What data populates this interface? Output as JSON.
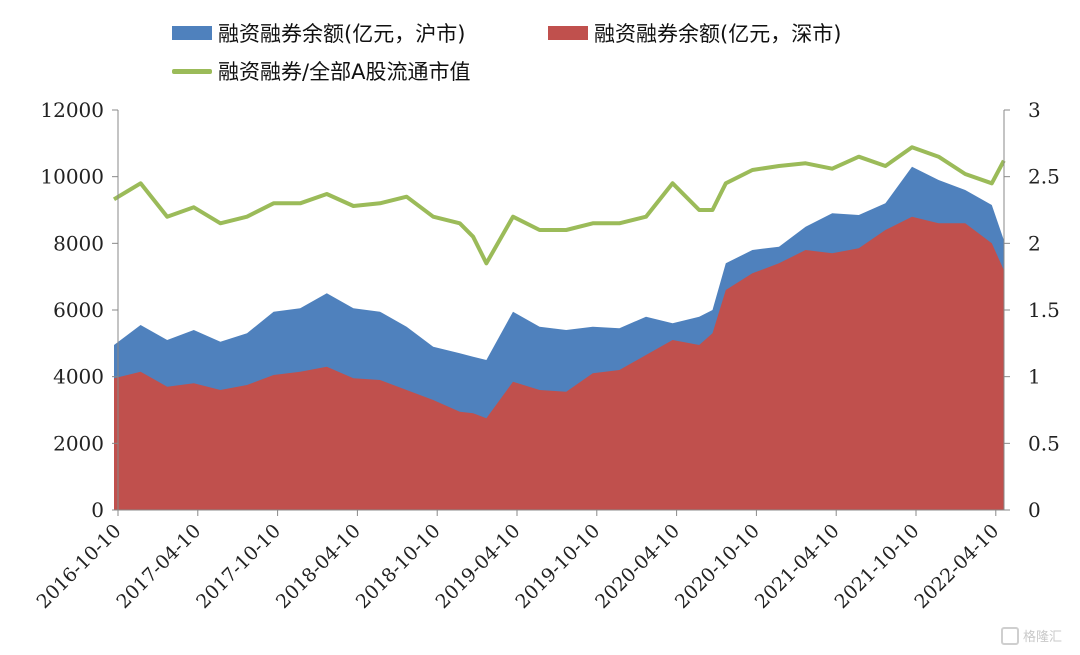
{
  "chart_data": {
    "type": "area",
    "title": "",
    "x_labels": [
      "2016-10-10",
      "2017-04-10",
      "2017-10-10",
      "2018-04-10",
      "2018-10-10",
      "2019-04-10",
      "2019-10-10",
      "2020-04-10",
      "2020-10-10",
      "2021-04-10",
      "2021-10-10",
      "2022-04-10"
    ],
    "x": [
      "2016-10",
      "2016-12",
      "2017-02",
      "2017-04",
      "2017-06",
      "2017-08",
      "2017-10",
      "2017-12",
      "2018-02",
      "2018-04",
      "2018-06",
      "2018-08",
      "2018-10",
      "2018-12",
      "2019-01",
      "2019-02",
      "2019-04",
      "2019-06",
      "2019-08",
      "2019-10",
      "2019-12",
      "2020-02",
      "2020-04",
      "2020-06",
      "2020-07",
      "2020-08",
      "2020-10",
      "2020-12",
      "2021-02",
      "2021-04",
      "2021-06",
      "2021-08",
      "2021-10",
      "2021-12",
      "2022-02",
      "2022-04",
      "2022-04-28"
    ],
    "series": [
      {
        "name": "融资融券余额(亿元，沪市)",
        "axis": "left",
        "color": "#4f81bd",
        "values": [
          4950,
          5550,
          5100,
          5400,
          5050,
          5300,
          5950,
          6050,
          6500,
          6050,
          5950,
          5500,
          4900,
          4700,
          4600,
          4500,
          5950,
          5500,
          5400,
          5500,
          5450,
          5800,
          5600,
          5800,
          6000,
          7400,
          7800,
          7900,
          8500,
          8900,
          8850,
          9200,
          10300,
          9900,
          9600,
          9150,
          8100
        ]
      },
      {
        "name": "融资融券余额(亿元，深市)",
        "axis": "left",
        "color": "#c0504d",
        "values": [
          3950,
          4150,
          3700,
          3800,
          3600,
          3750,
          4050,
          4150,
          4300,
          3950,
          3900,
          3600,
          3300,
          2950,
          2900,
          2750,
          3850,
          3600,
          3550,
          4100,
          4200,
          4650,
          5100,
          4950,
          5300,
          6600,
          7100,
          7400,
          7800,
          7700,
          7850,
          8400,
          8800,
          8600,
          8600,
          8000,
          7200
        ]
      },
      {
        "name": "融资融券/全部A股流通市值",
        "axis": "right",
        "color": "#9bbb59",
        "values": [
          2.33,
          2.45,
          2.2,
          2.27,
          2.15,
          2.2,
          2.3,
          2.3,
          2.37,
          2.28,
          2.3,
          2.35,
          2.2,
          2.15,
          2.05,
          1.85,
          2.2,
          2.1,
          2.1,
          2.15,
          2.15,
          2.2,
          2.45,
          2.25,
          2.25,
          2.45,
          2.55,
          2.58,
          2.6,
          2.56,
          2.65,
          2.58,
          2.72,
          2.65,
          2.52,
          2.45,
          2.62
        ]
      }
    ],
    "y_left": {
      "min": 0,
      "max": 12000,
      "ticks": [
        "0",
        "2000",
        "4000",
        "6000",
        "8000",
        "10000",
        "12000"
      ]
    },
    "y_right": {
      "min": 0,
      "max": 3,
      "ticks": [
        "0",
        "0.5",
        "1",
        "1.5",
        "2",
        "2.5",
        "3"
      ]
    },
    "grid": false,
    "legend_position": "top"
  },
  "legend": {
    "item1": "融资融券余额(亿元，沪市)",
    "item2": "融资融券余额(亿元，深市)",
    "item3": "融资融券/全部A股流通市值"
  },
  "watermark": "格隆汇"
}
